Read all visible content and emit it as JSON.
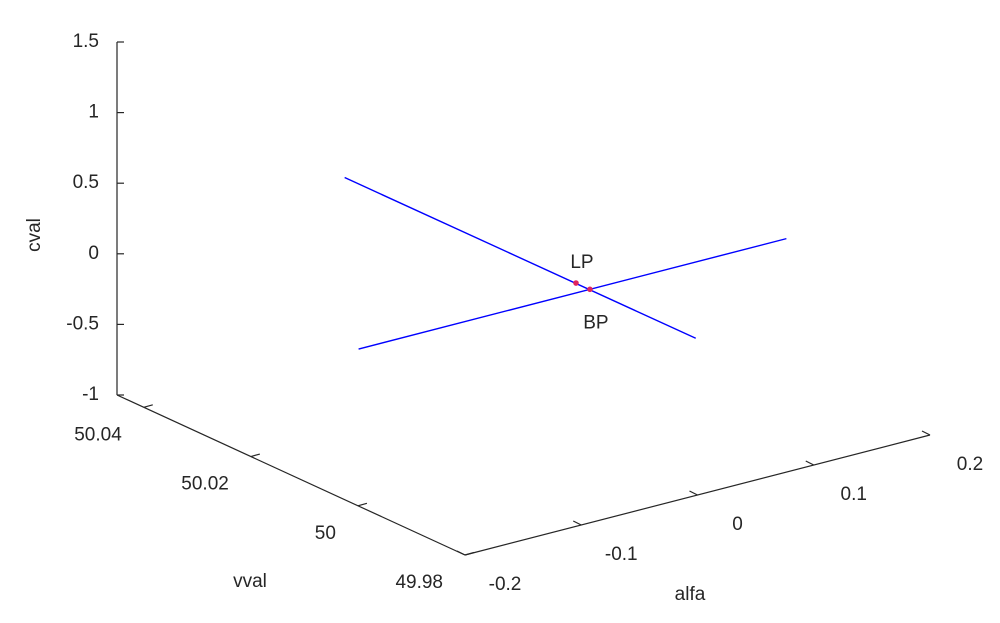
{
  "chart_data": {
    "type": "line3d",
    "xlabel": "alfa",
    "ylabel": "vval",
    "zlabel": "cval",
    "xlim": [
      -0.2,
      0.2
    ],
    "xticks": [
      -0.2,
      -0.1,
      0,
      0.1,
      0.2
    ],
    "ylim": [
      49.98,
      50.045
    ],
    "yticks": [
      49.98,
      50,
      50.02,
      50.04
    ],
    "zlim": [
      -1,
      1.5
    ],
    "zticks": [
      -1,
      -0.5,
      0,
      0.5,
      1,
      1.5
    ],
    "series": [
      {
        "color": "#0000ff",
        "x": [
          -0.193,
          0.109
        ],
        "y": [
          50.004,
          50.004
        ],
        "z": [
          1.24,
          -0.54
        ]
      },
      {
        "color": "#0000ff",
        "x": [
          -0.181,
          0.187
        ],
        "y": [
          50.004,
          50.004
        ],
        "z": [
          0,
          0
        ]
      }
    ],
    "points": [
      {
        "label": "LP",
        "color": "#e0245e",
        "x": 0.006,
        "y": 50.004,
        "z": 0.07
      },
      {
        "label": "BP",
        "color": "#e0245e",
        "x": 0.018,
        "y": 50.004,
        "z": 0
      }
    ]
  }
}
